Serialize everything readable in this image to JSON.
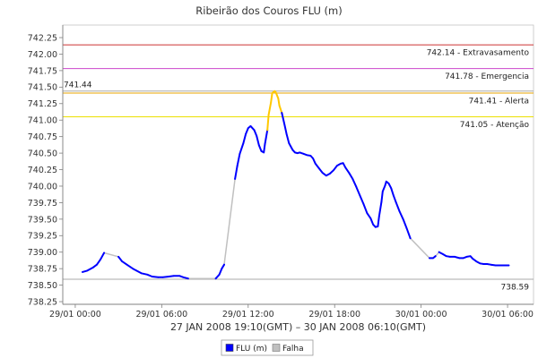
{
  "chart_data": {
    "type": "line",
    "title": "Ribeirão dos Couros FLU (m)",
    "xlabel": "27 JAN 2008 19:10(GMT) – 30 JAN 2008 06:10(GMT)",
    "xlim": [
      "28/01 23:08",
      "30/01 07:48"
    ],
    "ylim": [
      738.21,
      742.44
    ],
    "grid": false,
    "x_ticks": [
      "29/01 00:00",
      "29/01 06:00",
      "29/01 12:00",
      "29/01 18:00",
      "30/01 00:00",
      "30/01 06:00"
    ],
    "y_ticks": [
      "742.25",
      "742.00",
      "741.75",
      "741.50",
      "741.25",
      "741.00",
      "740.75",
      "740.50",
      "740.25",
      "740.00",
      "739.75",
      "739.50",
      "739.25",
      "739.00",
      "738.75",
      "738.50",
      "738.25"
    ],
    "legend": {
      "placement": "bottom",
      "items": [
        {
          "label": "FLU (m)",
          "color": "#0000ff"
        },
        {
          "label": "Falha",
          "color": "#c0c0c0"
        }
      ]
    },
    "series": [
      {
        "name": "FLU (m)",
        "color": "#0000ff",
        "segments": [
          {
            "points": [
              [
                "29/01 00:30",
                738.7
              ],
              [
                "29/01 00:50",
                738.72
              ],
              [
                "29/01 01:15",
                738.77
              ],
              [
                "29/01 01:30",
                738.81
              ],
              [
                "29/01 01:45",
                738.89
              ],
              [
                "29/01 02:00",
                738.99
              ]
            ]
          },
          {
            "points": [
              [
                "29/01 03:00",
                738.93
              ],
              [
                "29/01 03:15",
                738.86
              ],
              [
                "29/01 03:35",
                738.81
              ],
              [
                "29/01 04:00",
                738.75
              ],
              [
                "29/01 04:15",
                738.72
              ],
              [
                "29/01 04:35",
                738.68
              ],
              [
                "29/01 05:00",
                738.66
              ],
              [
                "29/01 05:20",
                738.63
              ],
              [
                "29/01 05:45",
                738.62
              ],
              [
                "29/01 06:05",
                738.62
              ],
              [
                "29/01 06:30",
                738.63
              ],
              [
                "29/01 06:50",
                738.64
              ],
              [
                "29/01 07:15",
                738.64
              ],
              [
                "29/01 07:30",
                738.62
              ],
              [
                "29/01 07:50",
                738.6
              ]
            ]
          },
          {
            "points": [
              [
                "29/01 09:45",
                738.6
              ],
              [
                "29/01 10:00",
                738.66
              ],
              [
                "29/01 10:10",
                738.75
              ],
              [
                "29/01 10:20",
                738.81
              ]
            ]
          },
          {
            "points": [
              [
                "29/01 11:05",
                740.11
              ],
              [
                "29/01 11:15",
                740.31
              ],
              [
                "29/01 11:25",
                740.49
              ],
              [
                "29/01 11:40",
                740.65
              ],
              [
                "29/01 11:50",
                740.79
              ],
              [
                "29/01 12:00",
                740.88
              ],
              [
                "29/01 12:10",
                740.91
              ],
              [
                "29/01 12:25",
                740.85
              ],
              [
                "29/01 12:35",
                740.76
              ],
              [
                "29/01 12:45",
                740.62
              ],
              [
                "29/01 12:55",
                740.53
              ],
              [
                "29/01 13:05",
                740.51
              ],
              [
                "29/01 13:10",
                740.64
              ],
              [
                "29/01 13:20",
                740.85
              ]
            ]
          },
          {
            "color": "#ffc800",
            "points": [
              [
                "29/01 13:20",
                740.85
              ],
              [
                "29/01 13:25",
                741.08
              ],
              [
                "29/01 13:35",
                741.27
              ],
              [
                "29/01 13:40",
                741.41
              ],
              [
                "29/01 13:50",
                741.44
              ],
              [
                "29/01 13:55",
                741.42
              ],
              [
                "29/01 14:05",
                741.33
              ],
              [
                "29/01 14:10",
                741.22
              ],
              [
                "29/01 14:20",
                741.11
              ]
            ]
          },
          {
            "points": [
              [
                "29/01 14:20",
                741.11
              ],
              [
                "29/01 14:30",
                740.95
              ],
              [
                "29/01 14:40",
                740.79
              ],
              [
                "29/01 14:50",
                740.65
              ],
              [
                "29/01 15:05",
                740.55
              ],
              [
                "29/01 15:15",
                740.51
              ],
              [
                "29/01 15:25",
                740.5
              ],
              [
                "29/01 15:35",
                740.51
              ],
              [
                "29/01 15:50",
                740.49
              ],
              [
                "29/01 16:05",
                740.47
              ],
              [
                "29/01 16:20",
                740.46
              ],
              [
                "29/01 16:30",
                740.42
              ],
              [
                "29/01 16:40",
                740.34
              ],
              [
                "29/01 16:55",
                740.27
              ],
              [
                "29/01 17:10",
                740.2
              ],
              [
                "29/01 17:25",
                740.16
              ],
              [
                "29/01 17:40",
                740.19
              ],
              [
                "29/01 17:55",
                740.24
              ],
              [
                "29/01 18:10",
                740.31
              ],
              [
                "29/01 18:25",
                740.34
              ],
              [
                "29/01 18:35",
                740.35
              ],
              [
                "29/01 18:45",
                740.28
              ],
              [
                "29/01 19:00",
                740.2
              ],
              [
                "29/01 19:15",
                740.11
              ],
              [
                "29/01 19:30",
                739.99
              ],
              [
                "29/01 19:45",
                739.86
              ],
              [
                "29/01 20:00",
                739.73
              ],
              [
                "29/01 20:15",
                739.59
              ],
              [
                "29/01 20:30",
                739.51
              ],
              [
                "29/01 20:40",
                739.42
              ],
              [
                "29/01 20:50",
                739.38
              ],
              [
                "29/01 21:00",
                739.39
              ],
              [
                "29/01 21:05",
                739.54
              ],
              [
                "29/01 21:15",
                739.76
              ],
              [
                "29/01 21:20",
                739.92
              ],
              [
                "29/01 21:30",
                740.01
              ],
              [
                "29/01 21:35",
                740.07
              ],
              [
                "29/01 21:45",
                740.04
              ],
              [
                "29/01 21:55",
                739.97
              ],
              [
                "29/01 22:05",
                739.86
              ],
              [
                "29/01 22:15",
                739.76
              ],
              [
                "29/01 22:30",
                739.62
              ],
              [
                "29/01 22:45",
                739.5
              ],
              [
                "29/01 23:00",
                739.36
              ],
              [
                "29/01 23:15",
                739.21
              ]
            ]
          },
          {
            "points": [
              [
                "30/01 00:35",
                738.91
              ],
              [
                "30/01 00:50",
                738.91
              ],
              [
                "30/01 01:00",
                738.94
              ]
            ]
          },
          {
            "points": [
              [
                "30/01 01:15",
                739.0
              ],
              [
                "30/01 01:30",
                738.97
              ],
              [
                "30/01 01:45",
                738.94
              ],
              [
                "30/01 02:00",
                738.93
              ],
              [
                "30/01 02:20",
                738.93
              ],
              [
                "30/01 02:40",
                738.91
              ],
              [
                "30/01 02:55",
                738.91
              ],
              [
                "30/01 03:10",
                738.93
              ],
              [
                "30/01 03:25",
                738.94
              ],
              [
                "30/01 03:35",
                738.9
              ],
              [
                "30/01 03:50",
                738.86
              ],
              [
                "30/01 04:05",
                738.83
              ],
              [
                "30/01 04:20",
                738.82
              ],
              [
                "30/01 04:35",
                738.82
              ],
              [
                "30/01 04:50",
                738.81
              ],
              [
                "30/01 05:10",
                738.8
              ],
              [
                "30/01 05:30",
                738.8
              ],
              [
                "30/01 05:50",
                738.8
              ],
              [
                "30/01 06:05",
                738.8
              ]
            ]
          }
        ]
      },
      {
        "name": "Falha",
        "color": "#c0c0c0",
        "segments": [
          {
            "points": [
              [
                "29/01 02:00",
                738.99
              ],
              [
                "29/01 03:00",
                738.93
              ]
            ]
          },
          {
            "points": [
              [
                "29/01 07:50",
                738.6
              ],
              [
                "29/01 09:45",
                738.6
              ]
            ]
          },
          {
            "points": [
              [
                "29/01 10:20",
                738.81
              ],
              [
                "29/01 11:05",
                740.11
              ]
            ]
          },
          {
            "points": [
              [
                "29/01 23:15",
                739.21
              ],
              [
                "30/01 00:35",
                738.91
              ]
            ]
          },
          {
            "points": [
              [
                "30/01 01:00",
                738.94
              ],
              [
                "30/01 01:15",
                739.0
              ]
            ]
          }
        ]
      }
    ],
    "reference_lines": [
      {
        "value": 742.14,
        "label": "742.14 - Extravasamento",
        "color": "#cc3333",
        "label_position": "below-right"
      },
      {
        "value": 741.78,
        "label": "741.78 - Emergencia",
        "color": "#cc44cc",
        "label_position": "below-right"
      },
      {
        "value": 741.44,
        "label": "741.44",
        "color": "#a8a8a8",
        "label_position": "above-left"
      },
      {
        "value": 741.41,
        "label": "741.41 - Alerta",
        "color": "#e8a400",
        "label_position": "below-right"
      },
      {
        "value": 741.05,
        "label": "741.05 - Atenção",
        "color": "#ece000",
        "label_position": "below-right"
      },
      {
        "value": 738.59,
        "label": "738.59",
        "color": "#a8a8a8",
        "label_position": "below-right"
      }
    ]
  }
}
